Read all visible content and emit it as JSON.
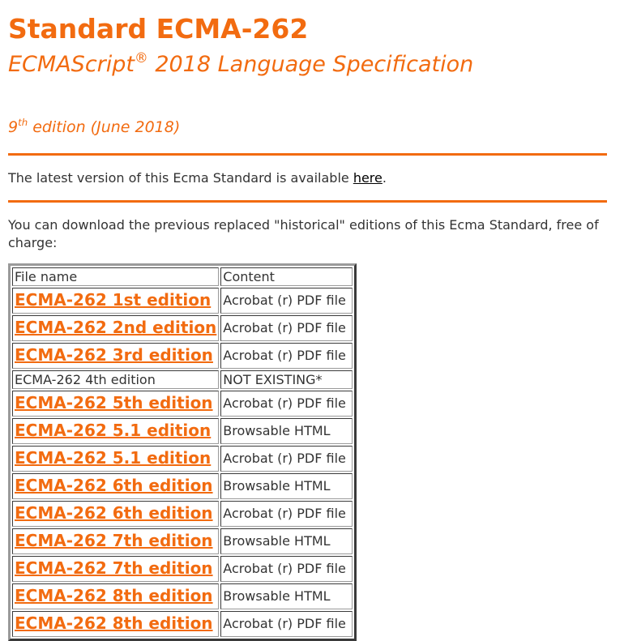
{
  "header": {
    "title": "Standard ECMA-262",
    "subtitle_main": "ECMAScript",
    "subtitle_sup": "®",
    "subtitle_rest": " 2018 Language Specification",
    "edition_num": "9",
    "edition_sup": "th",
    "edition_rest": " edition (June 2018)"
  },
  "latest": {
    "text": "The latest version of this Ecma Standard is available ",
    "link": "here",
    "after": "."
  },
  "intro": "You can download the previous replaced \"historical\" editions of this Ecma Standard, free of charge:",
  "table": {
    "headers": [
      "File name",
      "Content"
    ],
    "rows": [
      {
        "file": "ECMA-262 1st edition",
        "content": "Acrobat (r) PDF file",
        "link": true
      },
      {
        "file": "ECMA-262 2nd edition",
        "content": "Acrobat (r) PDF file",
        "link": true
      },
      {
        "file": "ECMA-262 3rd edition",
        "content": "Acrobat (r) PDF file",
        "link": true
      },
      {
        "file": "ECMA-262 4th edition",
        "content": "NOT EXISTING*",
        "link": false
      },
      {
        "file": "ECMA-262 5th edition",
        "content": "Acrobat (r) PDF file",
        "link": true
      },
      {
        "file": "ECMA-262 5.1 edition",
        "content": "Browsable HTML",
        "link": true
      },
      {
        "file": "ECMA-262 5.1 edition",
        "content": "Acrobat (r) PDF file",
        "link": true
      },
      {
        "file": "ECMA-262 6th edition",
        "content": "Browsable HTML",
        "link": true
      },
      {
        "file": "ECMA-262 6th edition",
        "content": "Acrobat (r) PDF file",
        "link": true
      },
      {
        "file": "ECMA-262 7th edition",
        "content": "Browsable HTML",
        "link": true
      },
      {
        "file": "ECMA-262 7th edition",
        "content": "Acrobat (r) PDF file",
        "link": true
      },
      {
        "file": "ECMA-262 8th edition",
        "content": "Browsable HTML",
        "link": true
      },
      {
        "file": "ECMA-262 8th edition",
        "content": "Acrobat (r) PDF file",
        "link": true
      }
    ]
  },
  "colors": {
    "accent": "#f26b10",
    "text": "#333333"
  }
}
